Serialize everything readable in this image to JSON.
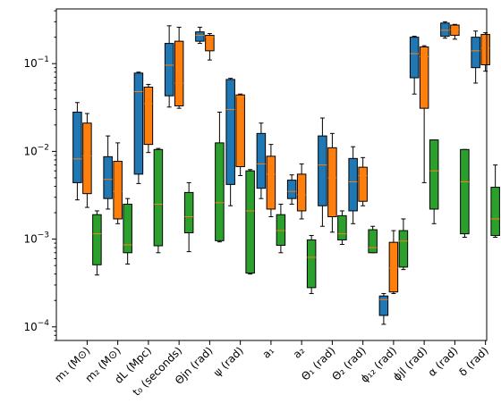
{
  "chart_data": {
    "type": "boxplot",
    "y_scale": "log",
    "ylim": [
      7e-05,
      0.42
    ],
    "y_ticks": [
      {
        "value": 0.0001,
        "label_base": "10",
        "label_exp": "−4"
      },
      {
        "value": 0.001,
        "label_base": "10",
        "label_exp": "−3"
      },
      {
        "value": 0.01,
        "label_base": "10",
        "label_exp": "−2"
      },
      {
        "value": 0.1,
        "label_base": "10",
        "label_exp": "−1"
      }
    ],
    "categories": [
      {
        "label": "m₁ (M⊙)"
      },
      {
        "label": "m₂ (M⊙)"
      },
      {
        "label": "dL (Mpc)"
      },
      {
        "label": "t₀ (seconds)"
      },
      {
        "label": "Θjn (rad)"
      },
      {
        "label": "ψ (rad)"
      },
      {
        "label": "a₁"
      },
      {
        "label": "a₂"
      },
      {
        "label": "Θ₁ (rad)"
      },
      {
        "label": "Θ₂ (rad)"
      },
      {
        "label": "ϕ₁₂ (rad)"
      },
      {
        "label": "ϕjl (rad)"
      },
      {
        "label": "α (rad)"
      },
      {
        "label": "δ (rad)"
      }
    ],
    "series": [
      {
        "color": "#1f77b4",
        "boxes": [
          {
            "whislo": 0.0028,
            "q1": 0.0044,
            "med": 0.0082,
            "q3": 0.028,
            "whishi": 0.036
          },
          {
            "whislo": 0.0022,
            "q1": 0.0029,
            "med": 0.0048,
            "q3": 0.0087,
            "whishi": 0.015
          },
          {
            "whislo": 0.0043,
            "q1": 0.0055,
            "med": 0.048,
            "q3": 0.078,
            "whishi": 0.08
          },
          {
            "whislo": 0.032,
            "q1": 0.043,
            "med": 0.096,
            "q3": 0.17,
            "whishi": 0.27
          },
          {
            "whislo": 0.17,
            "q1": 0.18,
            "med": 0.21,
            "q3": 0.23,
            "whishi": 0.26
          },
          {
            "whislo": 0.0024,
            "q1": 0.0042,
            "med": 0.03,
            "q3": 0.066,
            "whishi": 0.068
          },
          {
            "whislo": 0.0029,
            "q1": 0.0038,
            "med": 0.0072,
            "q3": 0.016,
            "whishi": 0.021
          },
          {
            "whislo": 0.0025,
            "q1": 0.0029,
            "med": 0.0035,
            "q3": 0.0047,
            "whishi": 0.0054
          },
          {
            "whislo": 0.0014,
            "q1": 0.0024,
            "med": 0.007,
            "q3": 0.015,
            "whishi": 0.024
          },
          {
            "whislo": 0.0015,
            "q1": 0.0021,
            "med": 0.0045,
            "q3": 0.0083,
            "whishi": 0.0113
          },
          {
            "whislo": 0.000107,
            "q1": 0.000135,
            "med": 0.000205,
            "q3": 0.000225,
            "whishi": 0.00024
          },
          {
            "whislo": 0.045,
            "q1": 0.069,
            "med": 0.13,
            "q3": 0.2,
            "whishi": 0.205
          },
          {
            "whislo": 0.195,
            "q1": 0.205,
            "med": 0.24,
            "q3": 0.29,
            "whishi": 0.3
          },
          {
            "whislo": 0.06,
            "q1": 0.09,
            "med": 0.14,
            "q3": 0.2,
            "whishi": 0.235
          }
        ]
      },
      {
        "color": "#ff7f0e",
        "boxes": [
          {
            "whislo": 0.0023,
            "q1": 0.0033,
            "med": 0.0089,
            "q3": 0.021,
            "whishi": 0.027
          },
          {
            "whislo": 0.0015,
            "q1": 0.0017,
            "med": 0.0035,
            "q3": 0.0077,
            "whishi": 0.0125
          },
          {
            "whislo": 0.0097,
            "q1": 0.012,
            "med": 0.035,
            "q3": 0.054,
            "whishi": 0.058
          },
          {
            "whislo": 0.031,
            "q1": 0.033,
            "med": 0.06,
            "q3": 0.18,
            "whishi": 0.26
          },
          {
            "whislo": 0.11,
            "q1": 0.14,
            "med": 0.2,
            "q3": 0.21,
            "whishi": 0.22
          },
          {
            "whislo": 0.0053,
            "q1": 0.0067,
            "med": 0.042,
            "q3": 0.044,
            "whishi": 0.045
          },
          {
            "whislo": 0.0018,
            "q1": 0.0022,
            "med": 0.0055,
            "q3": 0.0088,
            "whishi": 0.012
          },
          {
            "whislo": 0.0017,
            "q1": 0.0021,
            "med": 0.0032,
            "q3": 0.0055,
            "whishi": 0.0072
          },
          {
            "whislo": 0.0012,
            "q1": 0.0018,
            "med": 0.005,
            "q3": 0.011,
            "whishi": 0.016
          },
          {
            "whislo": 0.0024,
            "q1": 0.0027,
            "med": 0.0053,
            "q3": 0.0066,
            "whishi": 0.0085
          },
          {
            "whislo": 0.00024,
            "q1": 0.00025,
            "med": 0.00047,
            "q3": 0.00092,
            "whishi": 0.00125
          },
          {
            "whislo": 0.0044,
            "q1": 0.031,
            "med": 0.12,
            "q3": 0.155,
            "whishi": 0.16
          },
          {
            "whislo": 0.19,
            "q1": 0.21,
            "med": 0.245,
            "q3": 0.275,
            "whishi": 0.28
          },
          {
            "whislo": 0.082,
            "q1": 0.097,
            "med": 0.15,
            "q3": 0.215,
            "whishi": 0.225
          }
        ]
      },
      {
        "color": "#2ca02c",
        "boxes": [
          {
            "whislo": 0.00039,
            "q1": 0.00051,
            "med": 0.00115,
            "q3": 0.0019,
            "whishi": 0.0021
          },
          {
            "whislo": 0.00052,
            "q1": 0.0007,
            "med": 0.00086,
            "q3": 0.0025,
            "whishi": 0.0029
          },
          {
            "whislo": 0.0007,
            "q1": 0.00084,
            "med": 0.0025,
            "q3": 0.0105,
            "whishi": 0.0108
          },
          {
            "whislo": 0.00072,
            "q1": 0.00118,
            "med": 0.0018,
            "q3": 0.0034,
            "whishi": 0.0044
          },
          {
            "whislo": 0.00093,
            "q1": 0.00096,
            "med": 0.0026,
            "q3": 0.0125,
            "whishi": 0.028
          },
          {
            "whislo": 0.0004,
            "q1": 0.00041,
            "med": 0.0021,
            "q3": 0.006,
            "whishi": 0.0062
          },
          {
            "whislo": 0.0007,
            "q1": 0.00085,
            "med": 0.00125,
            "q3": 0.0019,
            "whishi": 0.0025
          },
          {
            "whislo": 0.00024,
            "q1": 0.00028,
            "med": 0.00062,
            "q3": 0.00098,
            "whishi": 0.0011
          },
          {
            "whislo": 0.00087,
            "q1": 0.00098,
            "med": 0.00115,
            "q3": 0.00185,
            "whishi": 0.0021
          },
          {
            "whislo": 0.0007,
            "q1": 0.0007,
            "med": 0.0008,
            "q3": 0.00128,
            "whishi": 0.0014
          },
          {
            "whislo": 0.00045,
            "q1": 0.00048,
            "med": 0.00095,
            "q3": 0.00125,
            "whishi": 0.0017
          },
          {
            "whislo": 0.0015,
            "q1": 0.0022,
            "med": 0.006,
            "q3": 0.0135,
            "whishi": 0.0135
          },
          {
            "whislo": 0.00105,
            "q1": 0.00115,
            "med": 0.0045,
            "q3": 0.0105,
            "whishi": 0.0105
          },
          {
            "whislo": 0.00105,
            "q1": 0.0011,
            "med": 0.0017,
            "q3": 0.0039,
            "whishi": 0.007
          }
        ]
      }
    ],
    "median_color": "#ff7f0e",
    "grid": false,
    "legend": "none"
  }
}
